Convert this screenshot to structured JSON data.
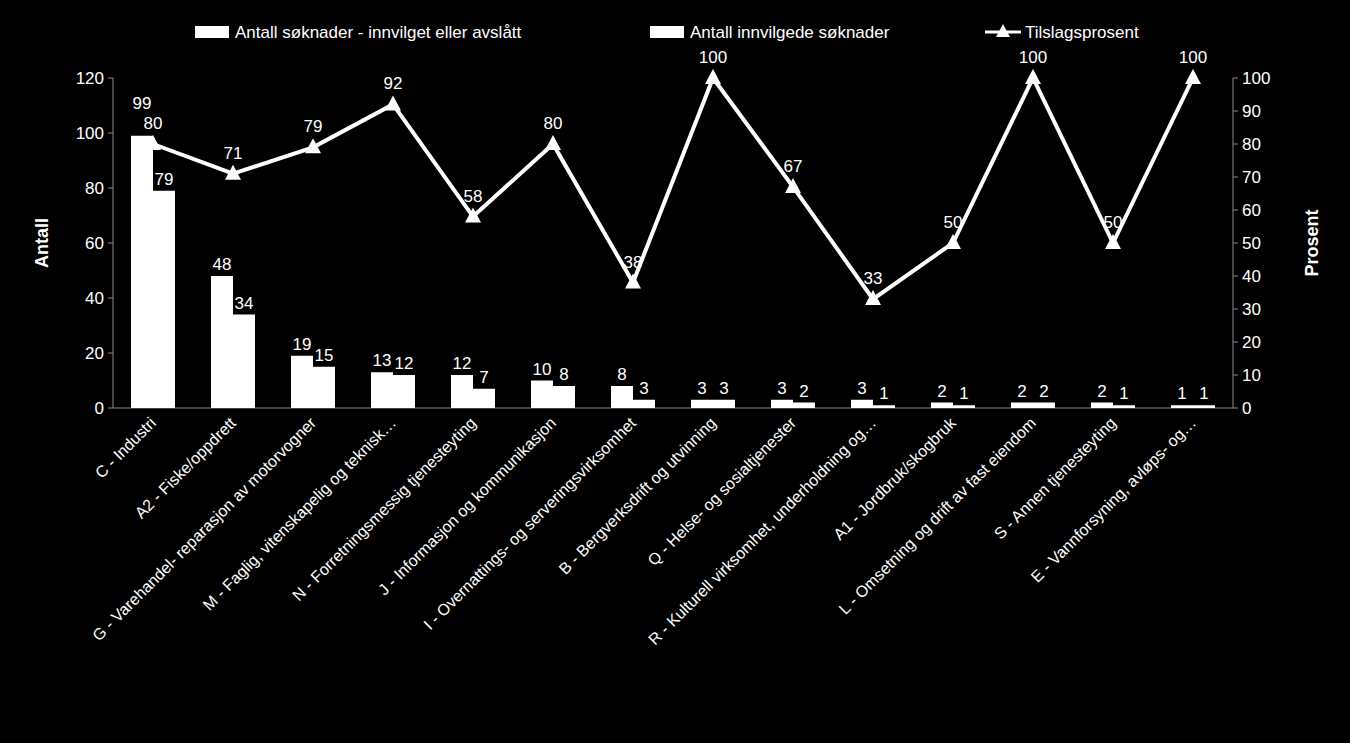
{
  "chart_data": {
    "type": "bar",
    "categories": [
      "C - Industri",
      "A2 - Fiske/oppdrett",
      "G - Varehandel- reparasjon av motorvogner",
      "M - Faglig, vitenskapelig og teknisk…",
      "N - Forretningsmessig tjenesteyting",
      "J - Informasjon og kommunikasjon",
      "I - Overnattings- og serveringsvirksomhet",
      "B - Bergverksdrift og utvinning",
      "Q - Helse- og sosialtjenester",
      "R - Kulturell virksomhet, underholdning og…",
      "A1 - Jordbruk/skogbruk",
      "L - Omsetning og drift av fast eiendom",
      "S - Annen tjenesteyting",
      "E - Vannforsyning, avløps- og…"
    ],
    "series": [
      {
        "name": "Antall søknader - innvilget eller avslått",
        "type": "bar",
        "color": "#ffffff",
        "values": [
          99,
          48,
          19,
          13,
          12,
          10,
          8,
          3,
          3,
          3,
          2,
          2,
          2,
          1
        ]
      },
      {
        "name": "Antall innvilgede søknader",
        "type": "bar",
        "color": "#ffffff",
        "values": [
          79,
          34,
          15,
          12,
          7,
          8,
          3,
          3,
          2,
          1,
          1,
          2,
          1,
          1
        ]
      },
      {
        "name": "Tilslagsprosent",
        "type": "line",
        "axis": "y2",
        "color": "#ffffff",
        "marker": "triangle",
        "values": [
          80,
          71,
          79,
          92,
          58,
          80,
          38,
          100,
          67,
          33,
          50,
          100,
          50,
          100
        ]
      }
    ],
    "y_label": "Antall",
    "y2_label": "Prosent",
    "ylim": [
      0,
      120
    ],
    "yticks": [
      0,
      20,
      40,
      60,
      80,
      100,
      120
    ],
    "y2lim": [
      0,
      100
    ],
    "y2ticks": [
      0,
      10,
      20,
      30,
      40,
      50,
      60,
      70,
      80,
      90,
      100
    ],
    "data_labels": true,
    "legend": "top",
    "grid": false
  }
}
